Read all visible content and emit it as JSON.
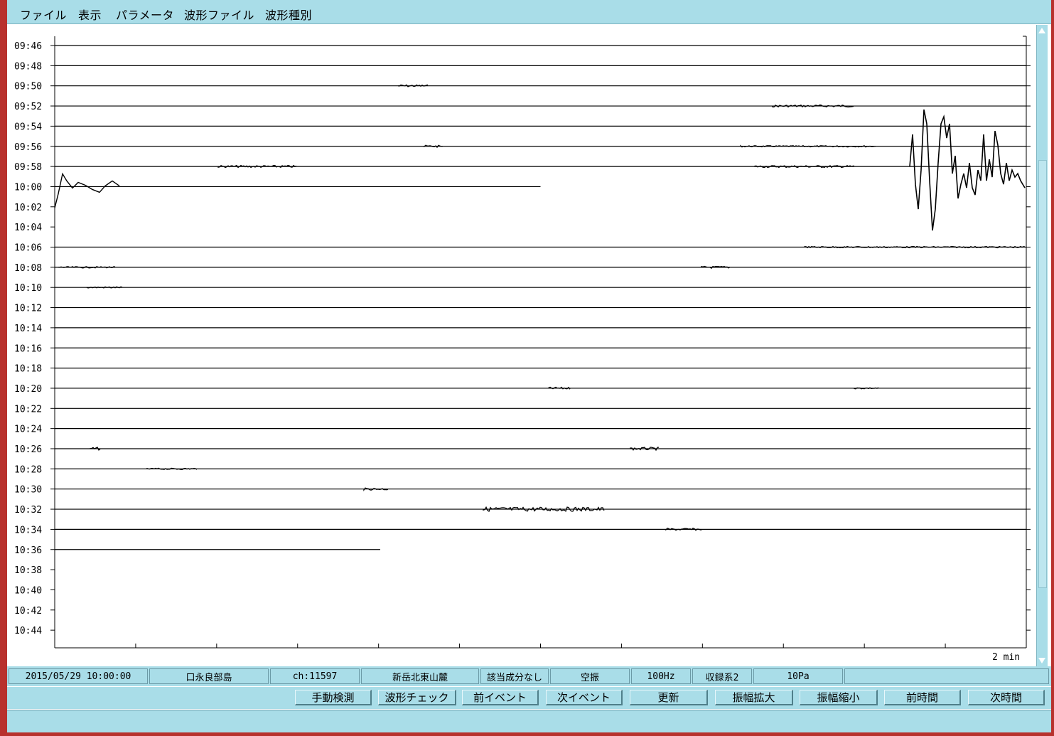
{
  "menu": {
    "items": [
      "ファイル",
      "表示",
      "パラメータ",
      "波形ファイル",
      "波形種別"
    ]
  },
  "plot": {
    "time_labels": [
      "09:46",
      "09:48",
      "09:50",
      "09:52",
      "09:54",
      "09:56",
      "09:58",
      "10:00",
      "10:02",
      "10:04",
      "10:06",
      "10:08",
      "10:10",
      "10:12",
      "10:14",
      "10:16",
      "10:18",
      "10:20",
      "10:22",
      "10:24",
      "10:26",
      "10:28",
      "10:30",
      "10:32",
      "10:34",
      "10:36",
      "10:38",
      "10:40",
      "10:42",
      "10:44"
    ],
    "scale_label": "2 min",
    "line_color": "#000000"
  },
  "status": {
    "datetime": "2015/05/29 10:00:00",
    "station": "口永良部島",
    "channel": "ch:11597",
    "location": "新岳北東山麓",
    "component": "該当成分なし",
    "type": "空振",
    "sampling": "100Hz",
    "recorder": "収録系2",
    "scale": "10Pa",
    "extra": ""
  },
  "buttons": {
    "manual_detect": "手動検測",
    "waveform_check": "波形チェック",
    "prev_event": "前イベント",
    "next_event": "次イベント",
    "refresh": "更新",
    "amp_up": "振幅拡大",
    "amp_down": "振幅縮小",
    "prev_time": "前時間",
    "next_time": "次時間"
  },
  "colors": {
    "panel_bg": "#a9dde8",
    "frame": "#b8312d"
  }
}
